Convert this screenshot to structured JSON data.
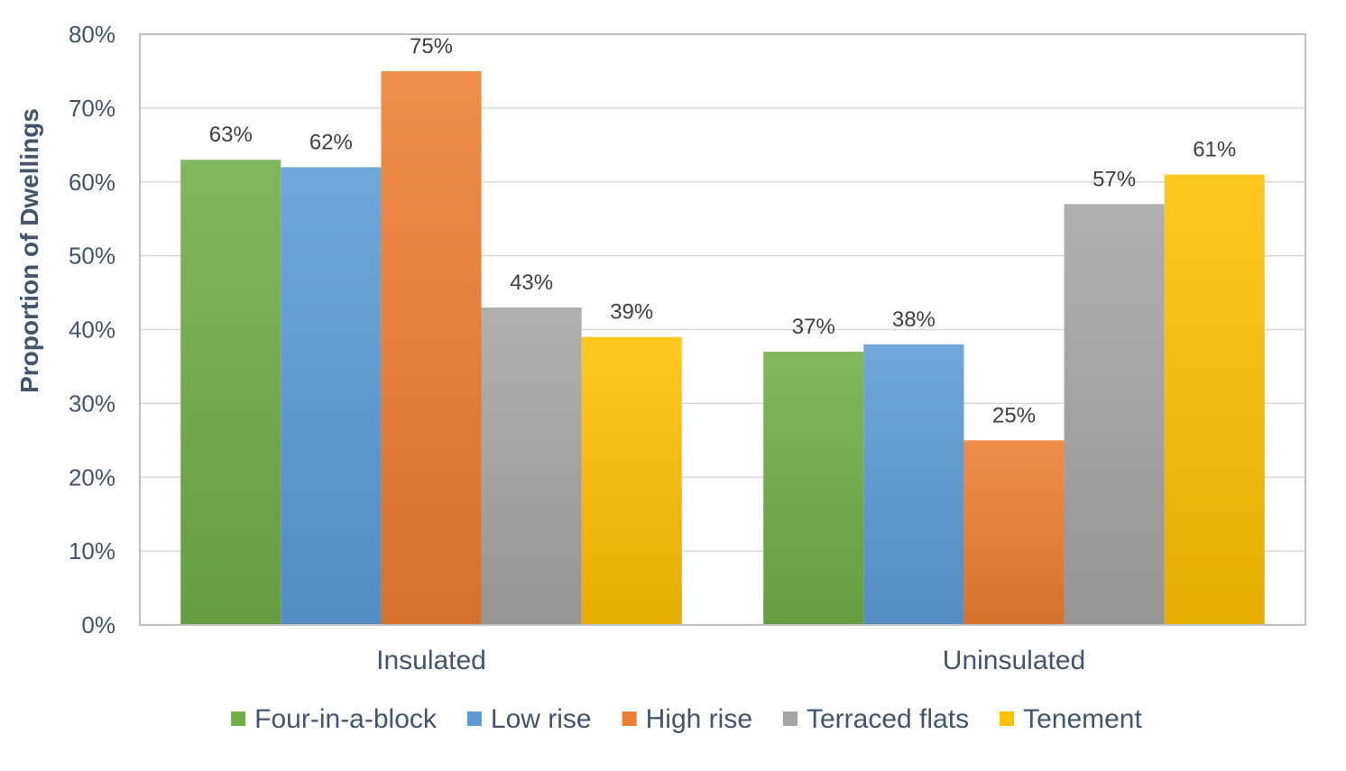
{
  "chart_data": {
    "type": "bar",
    "categories": [
      "Insulated",
      "Uninsulated"
    ],
    "series": [
      {
        "name": "Four-in-a-block",
        "values": [
          63,
          37
        ],
        "labels": [
          "63%",
          "37%"
        ],
        "color": "#70ad47"
      },
      {
        "name": "Low rise",
        "values": [
          62,
          38
        ],
        "labels": [
          "62%",
          "38%"
        ],
        "color": "#5b9bd5"
      },
      {
        "name": "High rise",
        "values": [
          75,
          25
        ],
        "labels": [
          "75%",
          "25%"
        ],
        "color": "#ed7d31"
      },
      {
        "name": "Terraced flats",
        "values": [
          43,
          57
        ],
        "labels": [
          "43%",
          "57%"
        ],
        "color": "#a5a5a5"
      },
      {
        "name": "Tenement",
        "values": [
          39,
          61
        ],
        "labels": [
          "39%",
          "61%"
        ],
        "color": "#ffc000"
      }
    ],
    "title": "",
    "xlabel": "",
    "ylabel": "Proportion of Dwellings",
    "ylim": [
      0,
      80
    ],
    "yticks": [
      "0%",
      "10%",
      "20%",
      "30%",
      "40%",
      "50%",
      "60%",
      "70%",
      "80%"
    ],
    "grid": true,
    "legend": "bottom"
  }
}
